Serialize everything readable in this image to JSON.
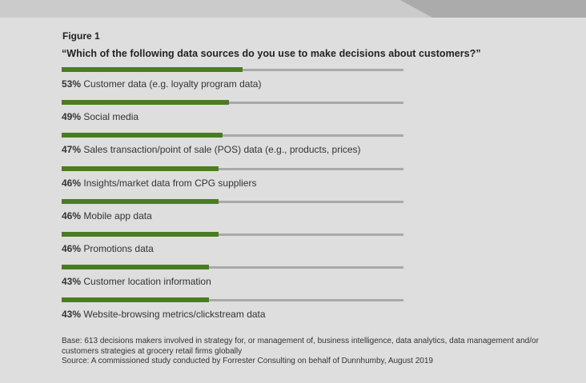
{
  "figure": {
    "label": "Figure 1",
    "question": "“Which of the following data sources do you use to make decisions about customers?”"
  },
  "colors": {
    "bar": "#4a7d22",
    "track": "#a9a9a9",
    "background": "#dedede"
  },
  "chart_data": {
    "type": "bar",
    "orientation": "horizontal",
    "title": "“Which of the following data sources do you use to make decisions about customers?”",
    "xlabel": "",
    "ylabel": "",
    "xlim": [
      0,
      100
    ],
    "grid": false,
    "legend": null,
    "categories": [
      "Customer data (e.g. loyalty program data)",
      "Social media",
      "Sales transaction/point of sale (POS) data (e.g., products, prices)",
      "Insights/market data from CPG suppliers",
      "Mobile app data",
      "Promotions data",
      "Customer location information",
      "Website-browsing metrics/clickstream data"
    ],
    "values": [
      53,
      49,
      47,
      46,
      46,
      46,
      43,
      43
    ],
    "unit": "%"
  },
  "rows": [
    {
      "pct": "53%",
      "label": " Customer data (e.g. loyalty program data)",
      "value": 53
    },
    {
      "pct": "49%",
      "label": " Social media",
      "value": 49
    },
    {
      "pct": "47%",
      "label": " Sales transaction/point of sale (POS) data (e.g., products, prices)",
      "value": 47
    },
    {
      "pct": "46%",
      "label": " Insights/market data from CPG suppliers",
      "value": 46
    },
    {
      "pct": "46%",
      "label": " Mobile app data",
      "value": 46
    },
    {
      "pct": "46%",
      "label": " Promotions data",
      "value": 46
    },
    {
      "pct": "43%",
      "label": " Customer location information",
      "value": 43
    },
    {
      "pct": "43%",
      "label": " Website-browsing metrics/clickstream data",
      "value": 43
    }
  ],
  "footnote": {
    "base": "Base: 613 decisions makers involved in strategy for, or management of, business intelligence, data analytics, data management and/or customers strategies at grocery retail firms globally",
    "source": "Source: A commissioned study conducted by Forrester Consulting on behalf of Dunnhumby, August 2019"
  }
}
